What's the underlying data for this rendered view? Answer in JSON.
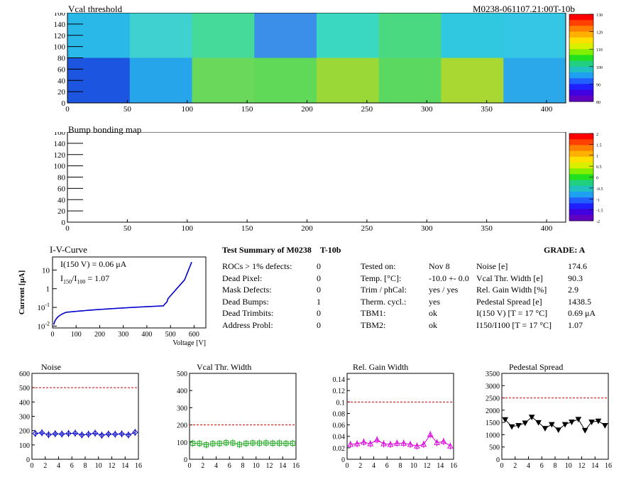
{
  "header": {
    "vcal_title": "Vcal threshold",
    "module_id": "M0238-061107.21:00T-10b",
    "bump_title": "Bump bonding map"
  },
  "maps": {
    "x_ticks": [
      0,
      50,
      100,
      150,
      200,
      250,
      300,
      350,
      400
    ],
    "y_ticks": [
      0,
      20,
      40,
      60,
      80,
      100,
      120,
      140,
      160
    ],
    "vcal_palette_ticks": [
      "130",
      "120",
      "110",
      "100",
      "90",
      "80"
    ],
    "bump_palette_ticks": [
      "2",
      "1.5",
      "1",
      "0.5",
      "0",
      "-0.5",
      "-1",
      "-1.5",
      "-2"
    ],
    "vcal_roc_colors": {
      "top": [
        "#2ab8e8",
        "#3fd0d0",
        "#45d99a",
        "#3b8fe8",
        "#3ad8c0",
        "#4ad880",
        "#2fc8e0",
        "#35c5e5"
      ],
      "bottom": [
        "#1c55e0",
        "#27a5ea",
        "#6ad85a",
        "#60d858",
        "#9ad838",
        "#5ad860",
        "#aad832",
        "#2aa8ea"
      ]
    }
  },
  "iv": {
    "title": "I-V-Curve",
    "line1_prefix": "I(150 V) = 0.06 ",
    "line1_unit": "μA",
    "line2_label": "I",
    "line2_sub1": "150",
    "line2_sep": "/I",
    "line2_sub2": "100",
    "line2_value": " =  1.07",
    "ylabel": "Current [μA]",
    "xlabel": "Voltage [V]",
    "x_ticks": [
      "0",
      "100",
      "200",
      "300",
      "400",
      "500",
      "600"
    ],
    "y_ticks": [
      {
        "base": "10",
        "exp": "-2"
      },
      {
        "base": "10",
        "exp": "-1"
      },
      {
        "base": "1",
        "exp": ""
      },
      {
        "base": "10",
        "exp": ""
      }
    ]
  },
  "summary": {
    "title": "Test Summary of M0238",
    "test": "T-10b",
    "grade": "GRADE:  A",
    "col1": [
      {
        "label": "ROCs > 1% defects:",
        "value": "0"
      },
      {
        "label": "Dead Pixel:",
        "value": "0"
      },
      {
        "label": "Mask Defects:",
        "value": "0"
      },
      {
        "label": "Dead Bumps:",
        "value": "1"
      },
      {
        "label": "Dead Trimbits:",
        "value": "0"
      },
      {
        "label": "Address Probl:",
        "value": "0"
      }
    ],
    "col2": [
      {
        "label": "Tested on:",
        "value": "Nov 8"
      },
      {
        "label": "Temp. [°C]:",
        "value": "-10.0 +- 0.0"
      },
      {
        "label": "Trim / phCal:",
        "value": "yes / yes"
      },
      {
        "label": "Therm. cycl.:",
        "value": "yes"
      },
      {
        "label": "TBM1:",
        "value": "ok"
      },
      {
        "label": "TBM2:",
        "value": "ok"
      }
    ],
    "col3": [
      {
        "label": "Noise [e]",
        "value": "174.6"
      },
      {
        "label": "Vcal Thr. Width [e]",
        "value": "90.3"
      },
      {
        "label": "Rel. Gain Width [%]",
        "value": "2.9"
      },
      {
        "label": "Pedestal Spread [e]",
        "value": "1438.5"
      },
      {
        "label": "I(150 V) [T = 17 °C]",
        "value": "0.69 μA"
      },
      {
        "label": "I150/I100  [T = 17 °C]",
        "value": "1.07"
      }
    ]
  },
  "chart_data": [
    {
      "type": "scatter",
      "title": "Noise",
      "x": [
        0,
        1,
        2,
        3,
        4,
        5,
        6,
        7,
        8,
        9,
        10,
        11,
        12,
        13,
        14,
        15
      ],
      "values": [
        180,
        185,
        172,
        178,
        176,
        180,
        182,
        170,
        175,
        182,
        168,
        176,
        175,
        177,
        170,
        188
      ],
      "ylim": [
        0,
        600
      ],
      "y_ticks": [
        0,
        100,
        200,
        300,
        400,
        500,
        600
      ],
      "threshold": 500,
      "color": "#0000cc",
      "marker": "diamond"
    },
    {
      "type": "scatter",
      "title": "Vcal Thr. Width",
      "x": [
        0,
        1,
        2,
        3,
        4,
        5,
        6,
        7,
        8,
        9,
        10,
        11,
        12,
        13,
        14,
        15
      ],
      "values": [
        93,
        92,
        84,
        91,
        92,
        96,
        95,
        86,
        92,
        95,
        94,
        95,
        93,
        94,
        92,
        93
      ],
      "ylim": [
        0,
        500
      ],
      "y_ticks": [
        0,
        100,
        200,
        300,
        400,
        500
      ],
      "threshold": 200,
      "color": "#22aa22",
      "marker": "square"
    },
    {
      "type": "scatter",
      "title": "Rel. Gain Width",
      "x": [
        0,
        1,
        2,
        3,
        4,
        5,
        6,
        7,
        8,
        9,
        10,
        11,
        12,
        13,
        14,
        15
      ],
      "values": [
        0.026,
        0.027,
        0.03,
        0.027,
        0.034,
        0.027,
        0.026,
        0.028,
        0.028,
        0.026,
        0.023,
        0.026,
        0.043,
        0.029,
        0.031,
        0.023
      ],
      "ylim": [
        0,
        0.15
      ],
      "y_ticks": [
        0,
        0.02,
        0.04,
        0.06,
        0.08,
        0.1,
        0.12,
        0.14
      ],
      "threshold": 0.1,
      "color": "#dd00dd",
      "marker": "triangle-up"
    },
    {
      "type": "line",
      "title": "Pedestal Spread",
      "x": [
        0,
        1,
        2,
        3,
        4,
        5,
        6,
        7,
        8,
        9,
        10,
        11,
        12,
        13,
        14,
        15
      ],
      "values": [
        1620,
        1330,
        1380,
        1480,
        1720,
        1500,
        1260,
        1420,
        1200,
        1420,
        1520,
        1630,
        1180,
        1520,
        1560,
        1380
      ],
      "ylim": [
        0,
        3500
      ],
      "y_ticks": [
        0,
        500,
        1000,
        1500,
        2000,
        2500,
        3000,
        3500
      ],
      "threshold": 2500,
      "color": "#000000",
      "marker": "triangle-down"
    }
  ]
}
